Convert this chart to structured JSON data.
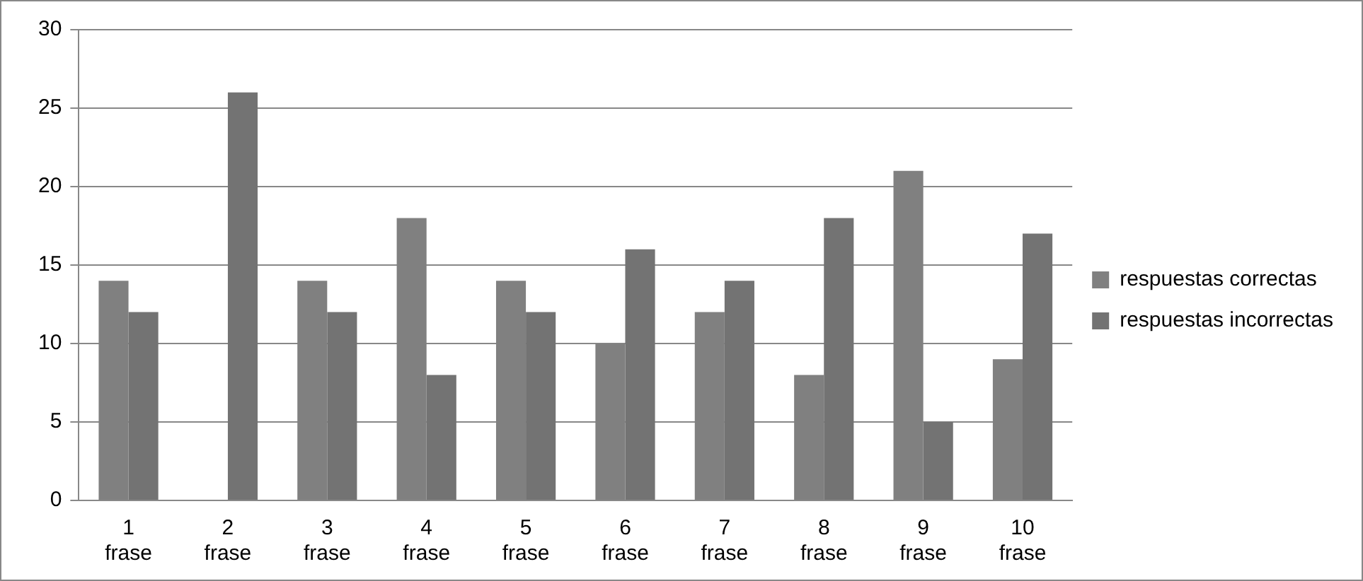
{
  "chart_data": {
    "type": "bar",
    "categories": [
      "1 frase",
      "2 frase",
      "3 frase",
      "4 frase",
      "5 frase",
      "6 frase",
      "7 frase",
      "8 frase",
      "9 frase",
      "10 frase"
    ],
    "series": [
      {
        "name": "respuestas correctas",
        "color": "#808080",
        "values": [
          14,
          0,
          14,
          18,
          14,
          10,
          12,
          8,
          21,
          9
        ]
      },
      {
        "name": "respuestas incorrectas",
        "color": "#737373",
        "values": [
          12,
          26,
          12,
          8,
          12,
          16,
          14,
          18,
          5,
          17
        ]
      }
    ],
    "ylim": [
      0,
      30
    ],
    "yticks": [
      0,
      5,
      10,
      15,
      20,
      25,
      30
    ],
    "grid": "y",
    "legend": "right"
  }
}
